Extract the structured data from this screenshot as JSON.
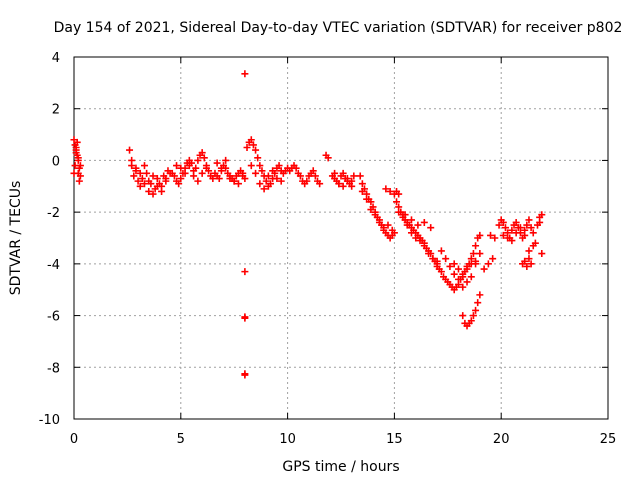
{
  "chart_data": {
    "type": "scatter",
    "title": "Day 154 of 2021, Sidereal Day-to-day VTEC variation (SDTVAR) for receiver p802",
    "xlabel": "GPS time / hours",
    "ylabel": "SDTVAR / TECUs",
    "xlim": [
      0,
      25
    ],
    "ylim": [
      -10,
      4
    ],
    "xticks": [
      0,
      5,
      10,
      15,
      20,
      25
    ],
    "yticks": [
      -10,
      -8,
      -6,
      -4,
      -2,
      0,
      2,
      4
    ],
    "grid": true,
    "marker": "+",
    "color": "#ff0000",
    "series": [
      {
        "name": "SDTVAR",
        "x": [
          0.0,
          0.05,
          0.1,
          0.15,
          0.2,
          0.25,
          0.3,
          0.05,
          0.1,
          0.15,
          0.2,
          0.25,
          0.0,
          0.1,
          0.2,
          0.3,
          2.6,
          2.7,
          2.8,
          2.9,
          3.0,
          3.1,
          3.2,
          3.3,
          3.4,
          3.5,
          3.6,
          3.7,
          3.8,
          3.9,
          4.0,
          4.1,
          4.2,
          4.3,
          4.4,
          4.5,
          2.7,
          2.9,
          3.1,
          3.3,
          3.5,
          3.7,
          3.9,
          4.1,
          4.3,
          4.6,
          4.7,
          4.8,
          4.9,
          5.0,
          5.1,
          5.2,
          5.3,
          5.4,
          5.5,
          5.6,
          5.7,
          5.8,
          5.9,
          6.0,
          6.1,
          6.2,
          6.3,
          6.4,
          6.5,
          4.8,
          5.0,
          5.2,
          5.4,
          5.6,
          5.8,
          6.0,
          6.2,
          6.6,
          6.7,
          6.8,
          6.9,
          7.0,
          7.1,
          7.2,
          7.3,
          7.4,
          7.5,
          7.6,
          7.7,
          7.8,
          7.9,
          8.0,
          6.7,
          6.9,
          7.1,
          7.3,
          7.5,
          7.7,
          7.9,
          8.0,
          8.0,
          8.0,
          8.0,
          8.0,
          8.0,
          8.1,
          8.2,
          8.3,
          8.4,
          8.5,
          8.6,
          8.7,
          8.8,
          8.9,
          9.0,
          9.1,
          9.2,
          9.3,
          9.4,
          9.5,
          9.6,
          9.7,
          9.8,
          9.9,
          10.0,
          8.3,
          8.5,
          8.7,
          8.9,
          9.1,
          9.3,
          9.5,
          9.7,
          10.1,
          10.2,
          10.3,
          10.4,
          10.5,
          10.6,
          10.7,
          10.8,
          10.9,
          11.0,
          11.1,
          11.2,
          11.3,
          11.4,
          11.5,
          11.8,
          11.9,
          12.1,
          12.2,
          12.3,
          12.4,
          12.5,
          12.6,
          12.7,
          12.8,
          12.9,
          13.0,
          13.1,
          12.2,
          12.4,
          12.6,
          12.8,
          13.0,
          13.4,
          13.5,
          13.6,
          13.7,
          13.8,
          13.9,
          14.0,
          14.1,
          14.2,
          14.3,
          14.4,
          14.5,
          14.6,
          14.7,
          14.8,
          14.9,
          15.0,
          13.5,
          13.7,
          13.9,
          14.1,
          14.3,
          14.5,
          14.7,
          14.9,
          14.6,
          14.8,
          15.0,
          15.1,
          15.2,
          15.1,
          15.2,
          15.3,
          15.4,
          15.5,
          15.6,
          15.7,
          15.8,
          15.9,
          16.0,
          16.1,
          16.2,
          16.3,
          16.4,
          16.5,
          16.6,
          16.7,
          16.8,
          16.9,
          17.0,
          15.2,
          15.4,
          15.6,
          15.8,
          16.0,
          16.2,
          16.4,
          16.6,
          16.8,
          17.0,
          15.5,
          15.8,
          16.1,
          16.4,
          16.7,
          17.0,
          17.1,
          17.2,
          17.3,
          17.4,
          17.5,
          17.6,
          17.7,
          17.8,
          17.9,
          18.0,
          18.1,
          18.2,
          18.3,
          18.4,
          18.5,
          18.6,
          18.7,
          18.8,
          18.9,
          19.0,
          17.2,
          17.4,
          17.6,
          17.8,
          18.0,
          18.2,
          18.4,
          18.6,
          18.8,
          19.0,
          17.8,
          18.0,
          18.2,
          18.4,
          18.6,
          18.8,
          18.2,
          18.3,
          18.4,
          18.5,
          18.6,
          18.7,
          18.8,
          18.9,
          19.0,
          19.2,
          19.4,
          19.6,
          19.5,
          19.7,
          19.9,
          20.0,
          20.1,
          20.2,
          20.3,
          20.4,
          20.5,
          20.6,
          20.7,
          20.8,
          20.9,
          21.0,
          21.1,
          21.2,
          21.3,
          21.4,
          21.5,
          21.6,
          21.7,
          21.8,
          20.1,
          20.3,
          20.5,
          20.7,
          20.9,
          21.1,
          21.3,
          21.5,
          21.0,
          21.1,
          21.2,
          21.3,
          21.4,
          21.9,
          21.9,
          21.8
        ],
        "y": [
          0.8,
          0.6,
          0.4,
          0.2,
          0.0,
          -0.3,
          -0.6,
          -0.2,
          0.5,
          0.7,
          -0.5,
          -0.8,
          -0.5,
          0.3,
          0.1,
          -0.2,
          0.4,
          -0.2,
          -0.6,
          -0.3,
          -0.8,
          -1.0,
          -0.7,
          -0.2,
          -0.5,
          -1.2,
          -0.9,
          -0.6,
          -1.1,
          -0.7,
          -0.9,
          -1.0,
          -0.6,
          -0.8,
          -0.4,
          -0.5,
          0.0,
          -0.4,
          -0.5,
          -0.9,
          -0.8,
          -1.3,
          -1.0,
          -1.2,
          -0.7,
          -0.5,
          -0.6,
          -0.8,
          -0.9,
          -0.7,
          -0.5,
          -0.3,
          -0.1,
          -0.2,
          -0.1,
          -0.4,
          -0.3,
          0.0,
          0.2,
          0.3,
          0.1,
          -0.2,
          -0.4,
          -0.6,
          -0.7,
          -0.2,
          -0.3,
          -0.5,
          0.0,
          -0.6,
          -0.8,
          -0.5,
          -0.3,
          -0.5,
          -0.6,
          -0.7,
          -0.4,
          -0.2,
          -0.3,
          -0.5,
          -0.6,
          -0.7,
          -0.8,
          -0.6,
          -0.5,
          -0.4,
          -0.6,
          -0.7,
          -0.1,
          -0.3,
          0.0,
          -0.7,
          -0.8,
          -0.9,
          -0.5,
          3.35,
          -4.3,
          -6.05,
          -6.1,
          -8.25,
          -8.3,
          0.5,
          0.7,
          0.8,
          0.6,
          0.4,
          0.1,
          -0.2,
          -0.4,
          -0.6,
          -0.8,
          -1.0,
          -0.9,
          -0.7,
          -0.5,
          -0.3,
          -0.2,
          -0.4,
          -0.5,
          -0.4,
          -0.3,
          -0.2,
          -0.5,
          -0.9,
          -1.1,
          -0.6,
          -0.4,
          -0.7,
          -0.8,
          -0.4,
          -0.3,
          -0.2,
          -0.3,
          -0.5,
          -0.6,
          -0.8,
          -0.9,
          -0.8,
          -0.6,
          -0.5,
          -0.4,
          -0.6,
          -0.8,
          -0.9,
          0.2,
          0.1,
          -0.6,
          -0.7,
          -0.8,
          -0.9,
          -0.6,
          -0.5,
          -0.7,
          -0.8,
          -0.9,
          -1.0,
          -0.6,
          -0.5,
          -0.9,
          -1.0,
          -0.7,
          -0.8,
          -0.6,
          -0.9,
          -1.1,
          -1.3,
          -1.5,
          -1.6,
          -1.8,
          -2.0,
          -2.2,
          -2.3,
          -2.5,
          -2.6,
          -2.8,
          -2.9,
          -3.0,
          -2.9,
          -2.8,
          -1.2,
          -1.5,
          -1.9,
          -2.1,
          -2.4,
          -2.7,
          -2.5,
          -2.7,
          -1.1,
          -1.2,
          -1.3,
          -1.2,
          -1.3,
          -1.6,
          -1.8,
          -2.0,
          -2.1,
          -2.3,
          -2.4,
          -2.5,
          -2.6,
          -2.7,
          -2.8,
          -2.9,
          -3.0,
          -3.1,
          -3.2,
          -3.4,
          -3.5,
          -3.6,
          -3.8,
          -3.9,
          -4.0,
          -2.0,
          -2.2,
          -2.5,
          -2.8,
          -3.0,
          -3.1,
          -3.3,
          -3.6,
          -3.8,
          -3.9,
          -2.1,
          -2.3,
          -2.5,
          -2.4,
          -2.6,
          -4.1,
          -4.2,
          -4.3,
          -4.5,
          -4.6,
          -4.7,
          -4.8,
          -4.9,
          -5.0,
          -4.9,
          -4.8,
          -4.6,
          -4.5,
          -4.3,
          -4.1,
          -4.0,
          -3.8,
          -3.6,
          -3.3,
          -3.0,
          -2.9,
          -3.5,
          -3.8,
          -4.1,
          -4.4,
          -4.6,
          -4.9,
          -4.7,
          -4.5,
          -4.0,
          -3.6,
          -4.0,
          -4.2,
          -4.4,
          -4.2,
          -4.0,
          -3.9,
          -6.0,
          -6.3,
          -6.4,
          -6.3,
          -6.2,
          -6.0,
          -5.8,
          -5.5,
          -5.2,
          -4.2,
          -4.0,
          -3.8,
          -2.9,
          -3.0,
          -2.5,
          -2.3,
          -2.4,
          -2.6,
          -2.8,
          -3.0,
          -2.7,
          -2.5,
          -2.4,
          -2.6,
          -2.8,
          -3.0,
          -2.7,
          -2.5,
          -2.3,
          -2.6,
          -2.8,
          -3.2,
          -2.5,
          -2.4,
          -2.9,
          -3.0,
          -3.1,
          -2.8,
          -2.6,
          -2.9,
          -3.5,
          -3.3,
          -4.0,
          -3.9,
          -4.1,
          -3.8,
          -4.0,
          -2.1,
          -3.6,
          -2.2
        ]
      }
    ]
  }
}
